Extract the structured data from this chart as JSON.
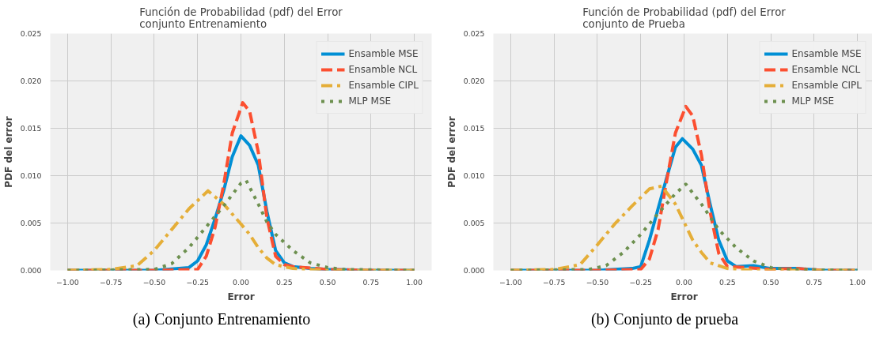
{
  "chart_data": [
    {
      "type": "line",
      "title": "Función de Probabilidad (pdf) del Error\nconjunto Entrenamiento",
      "xlabel": "Error",
      "ylabel": "PDF del error",
      "annotations": [
        "(a) Conjunto Entrenamiento"
      ],
      "xlim": [
        -1.1,
        1.1
      ],
      "ylim": [
        0,
        0.025
      ],
      "xticks": [
        {
          "value": -1,
          "label": "−1.00"
        },
        {
          "value": -0.75,
          "label": "−0.75"
        },
        {
          "value": -0.5,
          "label": "−0.50"
        },
        {
          "value": -0.25,
          "label": "−0.25"
        },
        {
          "value": 0,
          "label": "0.00"
        },
        {
          "value": 0.25,
          "label": "0.25"
        },
        {
          "value": 0.5,
          "label": "0.50"
        },
        {
          "value": 0.75,
          "label": "0.75"
        },
        {
          "value": 1,
          "label": "1.00"
        }
      ],
      "yticks": [
        {
          "value": 0,
          "label": "0.000"
        },
        {
          "value": 0.005,
          "label": "0.005"
        },
        {
          "value": 0.01,
          "label": "0.010"
        },
        {
          "value": 0.015,
          "label": "0.015"
        },
        {
          "value": 0.02,
          "label": "0.020"
        },
        {
          "value": 0.025,
          "label": "0.025"
        }
      ],
      "grid": true,
      "legend": "top right",
      "series": [
        {
          "name": "Ensamble MSE",
          "color": "#008fd5",
          "line_style": "solid",
          "x": [
            -1,
            -0.5,
            -0.3,
            -0.25,
            -0.2,
            -0.15,
            -0.1,
            -0.05,
            0,
            0.05,
            0.1,
            0.15,
            0.2,
            0.25,
            0.3,
            0.4,
            0.5,
            0.75,
            1
          ],
          "values": [
            0,
            0,
            0.0003,
            0.001,
            0.0027,
            0.0054,
            0.0084,
            0.012,
            0.0142,
            0.0132,
            0.0111,
            0.0062,
            0.0021,
            0.0008,
            0.0004,
            0.0002,
            0.0001,
            0,
            0
          ]
        },
        {
          "name": "Ensamble NCL",
          "color": "#fc4f30",
          "line_style": "dashed",
          "x": [
            -1,
            -0.5,
            -0.25,
            -0.2,
            -0.15,
            -0.1,
            -0.05,
            0.01,
            0.05,
            0.1,
            0.15,
            0.2,
            0.25,
            0.3,
            0.5,
            0.75,
            1
          ],
          "values": [
            0,
            0,
            0.0001,
            0.0015,
            0.0045,
            0.009,
            0.0145,
            0.0177,
            0.0168,
            0.0125,
            0.0055,
            0.0015,
            0.0006,
            0.0004,
            0.0001,
            0,
            0
          ]
        },
        {
          "name": "Ensamble CIPL",
          "color": "#e5ae38",
          "line_style": "dashdot",
          "x": [
            -1,
            -0.75,
            -0.6,
            -0.5,
            -0.4,
            -0.3,
            -0.19,
            -0.1,
            0,
            0.05,
            0.1,
            0.15,
            0.2,
            0.3,
            0.5,
            1
          ],
          "values": [
            0,
            0.0001,
            0.0005,
            0.0021,
            0.0043,
            0.0065,
            0.0084,
            0.007,
            0.0049,
            0.0038,
            0.0024,
            0.0013,
            0.0006,
            0.0002,
            0,
            0
          ]
        },
        {
          "name": "MLP MSE",
          "color": "#6d904f",
          "line_style": "dotted",
          "x": [
            -1,
            -0.5,
            -0.4,
            -0.3,
            -0.2,
            -0.1,
            0,
            0.03,
            0.1,
            0.15,
            0.2,
            0.3,
            0.4,
            0.5,
            0.6,
            1
          ],
          "values": [
            0,
            0.0001,
            0.0007,
            0.0024,
            0.0046,
            0.0068,
            0.0092,
            0.0095,
            0.007,
            0.0051,
            0.0038,
            0.0021,
            0.0008,
            0.0003,
            0.0001,
            0
          ]
        }
      ]
    },
    {
      "type": "line",
      "title": "Función de Probabilidad (pdf) del Error\nconjunto de Prueba",
      "xlabel": "Error",
      "ylabel": "PDF del error",
      "annotations": [
        "(b) Conjunto de prueba"
      ],
      "xlim": [
        -1.1,
        1.1
      ],
      "ylim": [
        0,
        0.025
      ],
      "xticks": [
        {
          "value": -1,
          "label": "−1.00"
        },
        {
          "value": -0.75,
          "label": "−0.75"
        },
        {
          "value": -0.5,
          "label": "−0.50"
        },
        {
          "value": -0.25,
          "label": "−0.25"
        },
        {
          "value": 0,
          "label": "0.00"
        },
        {
          "value": 0.25,
          "label": "0.25"
        },
        {
          "value": 0.5,
          "label": "0.50"
        },
        {
          "value": 0.75,
          "label": "0.75"
        },
        {
          "value": 1,
          "label": "1.00"
        }
      ],
      "yticks": [
        {
          "value": 0,
          "label": "0.000"
        },
        {
          "value": 0.005,
          "label": "0.005"
        },
        {
          "value": 0.01,
          "label": "0.010"
        },
        {
          "value": 0.015,
          "label": "0.015"
        },
        {
          "value": 0.02,
          "label": "0.020"
        },
        {
          "value": 0.025,
          "label": "0.025"
        }
      ],
      "grid": true,
      "legend": "top right",
      "series": [
        {
          "name": "Ensamble MSE",
          "color": "#008fd5",
          "line_style": "solid",
          "x": [
            -1,
            -0.5,
            -0.3,
            -0.25,
            -0.2,
            -0.15,
            -0.1,
            -0.05,
            -0.01,
            0.05,
            0.1,
            0.15,
            0.2,
            0.25,
            0.3,
            0.4,
            0.5,
            0.65,
            0.8,
            1
          ],
          "values": [
            0,
            0,
            0.0002,
            0.0004,
            0.0032,
            0.0065,
            0.0098,
            0.013,
            0.0139,
            0.0128,
            0.0111,
            0.007,
            0.0032,
            0.001,
            0.0004,
            0.0005,
            0.0002,
            0.0002,
            0,
            0
          ]
        },
        {
          "name": "Ensamble NCL",
          "color": "#fc4f30",
          "line_style": "dashed",
          "x": [
            -1,
            -0.5,
            -0.25,
            -0.2,
            -0.15,
            -0.1,
            -0.05,
            0.01,
            0.05,
            0.1,
            0.15,
            0.2,
            0.25,
            0.35,
            0.5,
            0.65,
            0.8,
            1
          ],
          "values": [
            0,
            0,
            0.0001,
            0.0012,
            0.0043,
            0.0095,
            0.0145,
            0.0173,
            0.0163,
            0.0122,
            0.0062,
            0.0018,
            0.0004,
            0.0003,
            0.0001,
            0.0002,
            0,
            0
          ]
        },
        {
          "name": "Ensamble CIPL",
          "color": "#e5ae38",
          "line_style": "dashdot",
          "x": [
            -1,
            -0.75,
            -0.6,
            -0.5,
            -0.4,
            -0.3,
            -0.2,
            -0.13,
            -0.05,
            0,
            0.05,
            0.1,
            0.15,
            0.25,
            0.4,
            1
          ],
          "values": [
            0,
            0.0001,
            0.0006,
            0.0027,
            0.0049,
            0.0068,
            0.0086,
            0.0089,
            0.007,
            0.0051,
            0.0032,
            0.0019,
            0.0008,
            0.0002,
            0,
            0
          ]
        },
        {
          "name": "MLP MSE",
          "color": "#6d904f",
          "line_style": "dotted",
          "x": [
            -1,
            -0.55,
            -0.45,
            -0.35,
            -0.25,
            -0.15,
            -0.05,
            0.01,
            0.1,
            0.2,
            0.3,
            0.4,
            0.5,
            0.6,
            1
          ],
          "values": [
            0,
            0.0001,
            0.0005,
            0.0019,
            0.0038,
            0.006,
            0.0081,
            0.0091,
            0.007,
            0.0043,
            0.0024,
            0.001,
            0.0003,
            0.0001,
            0
          ]
        }
      ]
    }
  ]
}
